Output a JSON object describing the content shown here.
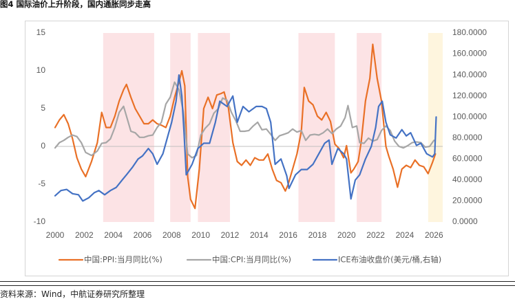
{
  "figure": {
    "title": "图4  国际油价上升阶段，国内通胀同步走高",
    "source": "资料来源：Wind，中航证券研究所整理"
  },
  "colors": {
    "ppi": "#E97026",
    "cpi": "#A6A6A6",
    "oil": "#4472C4",
    "band": "#FCE3E5",
    "band_recent": "#FEF5DE",
    "axis_text": "#595959"
  },
  "chart_data": {
    "type": "line",
    "title": "",
    "x_range": [
      2000,
      2026.6
    ],
    "x_ticks": [
      "2000",
      "2002",
      "2004",
      "2006",
      "2008",
      "2010",
      "2012",
      "2014",
      "2016",
      "2018",
      "2020",
      "2022",
      "2024",
      "2026"
    ],
    "y_left": {
      "range": [
        -10,
        15
      ],
      "ticks": [
        "-10",
        "-5",
        "0",
        "5",
        "10",
        "15"
      ]
    },
    "y_right": {
      "range": [
        0,
        180
      ],
      "ticks": [
        "0.0000",
        "20.0000",
        "40.0000",
        "60.0000",
        "80.0000",
        "100.0000",
        "120.0000",
        "140.0000",
        "160.0000",
        "180.0000"
      ]
    },
    "oil_rise_periods": [
      [
        2003.3,
        2006.8
      ],
      [
        2007.9,
        2009.3
      ],
      [
        2009.8,
        2012.0
      ],
      [
        2016.7,
        2019.2
      ],
      [
        2020.7,
        2022.4
      ]
    ],
    "recent_period": [
      2025.6,
      2026.6
    ],
    "series": [
      {
        "name": "中国:PPI:当月同比(%)",
        "axis": "left",
        "color_key": "ppi",
        "x": [
          2000.0,
          2000.3,
          2000.6,
          2000.9,
          2001.2,
          2001.5,
          2001.8,
          2002.1,
          2002.5,
          2002.9,
          2003.2,
          2003.5,
          2003.8,
          2004.1,
          2004.4,
          2004.7,
          2004.9,
          2005.2,
          2005.5,
          2005.8,
          2006.1,
          2006.4,
          2006.7,
          2007.0,
          2007.3,
          2007.6,
          2007.9,
          2008.2,
          2008.5,
          2008.7,
          2008.9,
          2009.1,
          2009.3,
          2009.6,
          2009.9,
          2010.2,
          2010.5,
          2010.8,
          2011.1,
          2011.4,
          2011.6,
          2011.9,
          2012.2,
          2012.5,
          2012.8,
          2013.1,
          2013.4,
          2013.7,
          2014.0,
          2014.3,
          2014.6,
          2014.9,
          2015.2,
          2015.5,
          2015.8,
          2016.0,
          2016.3,
          2016.6,
          2016.9,
          2017.1,
          2017.4,
          2017.7,
          2018.0,
          2018.3,
          2018.6,
          2018.9,
          2019.2,
          2019.5,
          2019.8,
          2020.0,
          2020.3,
          2020.5,
          2020.8,
          2021.0,
          2021.3,
          2021.6,
          2021.8,
          2021.9,
          2022.1,
          2022.4,
          2022.7,
          2022.9,
          2023.2,
          2023.5,
          2023.8,
          2024.1,
          2024.4,
          2024.7,
          2025.0,
          2025.3,
          2025.6,
          2025.9,
          2026.1
        ],
        "values": [
          2.5,
          3.5,
          4.2,
          3.0,
          1.0,
          -1.5,
          -3.0,
          -4.0,
          -2.0,
          0.5,
          4.5,
          2.5,
          2.5,
          4.0,
          6.0,
          7.5,
          8.2,
          6.5,
          5.0,
          4.0,
          3.0,
          3.0,
          3.5,
          3.0,
          2.8,
          2.5,
          4.0,
          6.5,
          8.5,
          10.0,
          8.0,
          -4.0,
          -7.0,
          -8.2,
          -3.0,
          5.0,
          6.5,
          5.0,
          6.8,
          7.0,
          7.2,
          5.0,
          0.5,
          -2.0,
          -2.5,
          -1.8,
          -2.5,
          -1.5,
          -1.8,
          -1.8,
          -1.0,
          -3.0,
          -4.5,
          -4.8,
          -5.9,
          -5.0,
          -3.0,
          -1.0,
          2.0,
          7.8,
          6.0,
          5.5,
          4.0,
          3.5,
          4.5,
          3.3,
          0.3,
          -0.3,
          -1.5,
          0.1,
          -3.5,
          -3.0,
          -2.0,
          0.5,
          6.0,
          9.0,
          13.5,
          12.0,
          9.0,
          6.0,
          0.0,
          -1.3,
          -3.0,
          -5.4,
          -3.0,
          -2.5,
          -2.8,
          -1.8,
          -2.5,
          -2.7,
          -3.6,
          -2.1,
          -1.0
        ]
      },
      {
        "name": "中国:CPI:当月同比(%)",
        "axis": "left",
        "color_key": "cpi",
        "x": [
          2000.0,
          2000.3,
          2000.6,
          2000.9,
          2001.2,
          2001.5,
          2001.8,
          2002.1,
          2002.5,
          2002.9,
          2003.2,
          2003.5,
          2003.8,
          2004.1,
          2004.4,
          2004.7,
          2004.9,
          2005.2,
          2005.5,
          2005.8,
          2006.1,
          2006.4,
          2006.7,
          2007.0,
          2007.3,
          2007.6,
          2007.9,
          2008.2,
          2008.5,
          2008.8,
          2009.1,
          2009.4,
          2009.7,
          2010.0,
          2010.3,
          2010.6,
          2010.9,
          2011.2,
          2011.5,
          2011.8,
          2012.1,
          2012.4,
          2012.7,
          2013.0,
          2013.3,
          2013.6,
          2013.9,
          2014.2,
          2014.5,
          2014.8,
          2015.1,
          2015.4,
          2015.7,
          2016.0,
          2016.3,
          2016.6,
          2016.9,
          2017.2,
          2017.5,
          2017.8,
          2018.1,
          2018.4,
          2018.7,
          2019.0,
          2019.3,
          2019.6,
          2019.9,
          2020.1,
          2020.4,
          2020.7,
          2020.9,
          2021.2,
          2021.5,
          2021.8,
          2022.1,
          2022.4,
          2022.7,
          2023.0,
          2023.3,
          2023.6,
          2023.9,
          2024.2,
          2024.5,
          2024.8,
          2025.1,
          2025.4,
          2025.7,
          2026.0
        ],
        "values": [
          -0.2,
          0.5,
          0.8,
          1.2,
          1.5,
          1.3,
          0.5,
          -0.8,
          -1.2,
          -0.6,
          0.4,
          0.5,
          1.0,
          2.5,
          4.5,
          5.3,
          4.0,
          2.0,
          1.8,
          1.2,
          1.2,
          1.4,
          1.5,
          2.5,
          3.2,
          5.6,
          6.5,
          8.5,
          7.5,
          4.6,
          -1.0,
          -1.5,
          -1.2,
          1.5,
          2.4,
          3.0,
          4.4,
          5.0,
          6.4,
          6.1,
          4.5,
          3.4,
          2.0,
          2.0,
          2.1,
          2.7,
          3.2,
          2.2,
          2.3,
          1.6,
          0.8,
          1.4,
          1.6,
          1.8,
          2.3,
          1.9,
          2.1,
          0.8,
          1.5,
          1.6,
          1.5,
          1.8,
          2.3,
          1.7,
          2.3,
          2.7,
          3.8,
          5.4,
          2.5,
          2.7,
          0.5,
          0.4,
          1.1,
          0.7,
          0.9,
          2.1,
          2.7,
          2.1,
          0.7,
          0.0,
          -0.2,
          0.1,
          0.5,
          0.6,
          0.5,
          -0.1,
          0.0,
          0.8
        ]
      },
      {
        "name": "ICE布油收盘价(美元/桶,右轴)",
        "axis": "right",
        "color_key": "oil",
        "x": [
          2000.0,
          2000.4,
          2000.8,
          2001.2,
          2001.6,
          2001.9,
          2002.3,
          2002.7,
          2003.0,
          2003.4,
          2003.8,
          2004.2,
          2004.6,
          2004.9,
          2005.3,
          2005.7,
          2006.0,
          2006.4,
          2006.7,
          2007.0,
          2007.4,
          2007.8,
          2008.0,
          2008.3,
          2008.5,
          2008.7,
          2008.85,
          2009.0,
          2009.4,
          2009.8,
          2010.2,
          2010.6,
          2011.0,
          2011.3,
          2011.8,
          2012.2,
          2012.5,
          2012.9,
          2013.3,
          2013.8,
          2014.2,
          2014.5,
          2014.8,
          2015.1,
          2015.5,
          2015.9,
          2016.05,
          2016.5,
          2016.9,
          2017.3,
          2017.7,
          2018.1,
          2018.5,
          2018.8,
          2019.0,
          2019.4,
          2019.8,
          2020.0,
          2020.3,
          2020.6,
          2020.9,
          2021.3,
          2021.7,
          2022.0,
          2022.2,
          2022.45,
          2022.7,
          2023.0,
          2023.4,
          2023.8,
          2024.1,
          2024.4,
          2024.8,
          2025.1,
          2025.5,
          2025.9,
          2026.05,
          2026.15
        ],
        "values": [
          25,
          30,
          31,
          27,
          26,
          20,
          23,
          28,
          30,
          26,
          30,
          33,
          40,
          45,
          52,
          60,
          63,
          70,
          65,
          55,
          65,
          85,
          95,
          115,
          140,
          120,
          85,
          45,
          55,
          70,
          75,
          75,
          95,
          115,
          110,
          120,
          95,
          110,
          105,
          110,
          110,
          108,
          95,
          55,
          60,
          44,
          32,
          45,
          50,
          50,
          55,
          65,
          75,
          78,
          55,
          70,
          65,
          60,
          22,
          40,
          45,
          60,
          72,
          90,
          110,
          115,
          95,
          83,
          80,
          88,
          82,
          85,
          73,
          75,
          65,
          62,
          65,
          100
        ]
      }
    ]
  }
}
